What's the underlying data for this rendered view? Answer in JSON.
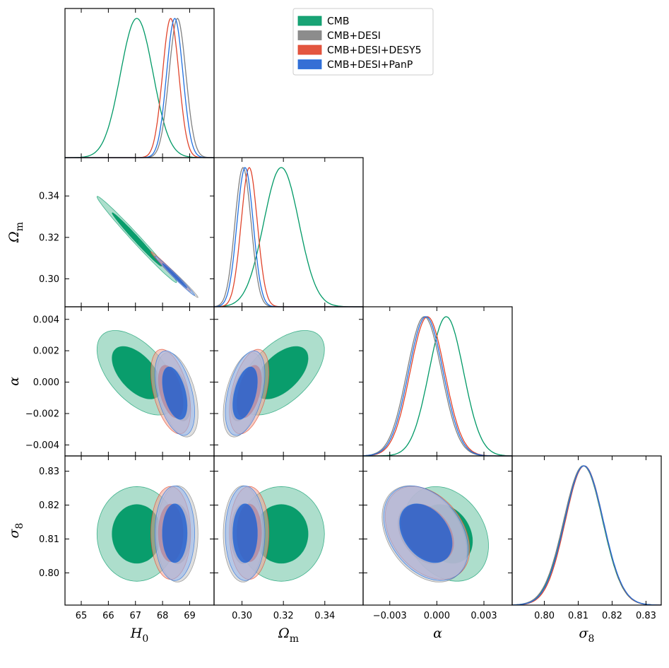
{
  "chart_data": {
    "type": "triangle-corner-plot",
    "parameters": [
      {
        "key": "H0",
        "label": "H",
        "sub": "0",
        "range": [
          64.4,
          69.9
        ],
        "ticks": [
          65,
          66,
          67,
          68,
          69
        ],
        "tick_labels": [
          "65",
          "66",
          "67",
          "68",
          "69"
        ]
      },
      {
        "key": "Om",
        "label": "Ω",
        "sub": "m",
        "range": [
          0.2865,
          0.3585
        ],
        "ticks": [
          0.3,
          0.32,
          0.34
        ],
        "tick_labels": [
          "0.30",
          "0.32",
          "0.34"
        ],
        "y_ticks": [
          0.3,
          0.32,
          0.34
        ],
        "y_tick_labels": [
          "0.30",
          "0.32",
          "0.34"
        ]
      },
      {
        "key": "alpha",
        "label": "α",
        "sub": "",
        "range": [
          -0.0047,
          0.0048
        ],
        "ticks": [
          -0.003,
          0.0,
          0.003
        ],
        "tick_labels": [
          "−0.003",
          "0.000",
          "0.003"
        ],
        "y_ticks": [
          -0.004,
          -0.002,
          0.0,
          0.002,
          0.004
        ],
        "y_tick_labels": [
          "−0.004",
          "−0.002",
          "0.000",
          "0.002",
          "0.004"
        ]
      },
      {
        "key": "s8",
        "label": "σ",
        "sub": "8",
        "range": [
          0.7905,
          0.8345
        ],
        "ticks": [
          0.8,
          0.81,
          0.82,
          0.83
        ],
        "tick_labels": [
          "0.80",
          "0.81",
          "0.82",
          "0.83"
        ],
        "y_ticks": [
          0.8,
          0.81,
          0.82,
          0.83
        ],
        "y_tick_labels": [
          "0.80",
          "0.81",
          "0.82",
          "0.83"
        ]
      }
    ],
    "series": [
      {
        "name": "CMB",
        "color": "#009966",
        "fill_inner": "#009966",
        "fill_outer": "#9fd8c3",
        "mean": {
          "H0": 67.05,
          "Om": 0.319,
          "alpha": 0.0006,
          "s8": 0.8115
        },
        "sigma": {
          "H0": 0.6,
          "Om": 0.0085,
          "alpha": 0.0011,
          "s8": 0.0057
        },
        "corr": {
          "H0|Om": -0.99,
          "H0|alpha": -0.55,
          "H0|s8": 0.0,
          "Om|alpha": 0.55,
          "Om|s8": 0.0,
          "alpha|s8": -0.25
        }
      },
      {
        "name": "CMB+DESI",
        "color": "#808080",
        "fill_inner": "#808080",
        "fill_outer": "#c8c8c8",
        "mean": {
          "H0": 68.55,
          "Om": 0.3005,
          "alpha": -0.0008,
          "s8": 0.8115
        },
        "sigma": {
          "H0": 0.31,
          "Om": 0.0039,
          "alpha": 0.0011,
          "s8": 0.0058
        },
        "corr": {
          "H0|Om": -0.99,
          "H0|alpha": -0.45,
          "H0|s8": 0.0,
          "Om|alpha": 0.45,
          "Om|s8": 0.0,
          "alpha|s8": -0.35
        }
      },
      {
        "name": "CMB+DESI+DESY5",
        "color": "#e0442b",
        "fill_inner": "#e0442b",
        "fill_outer": "#f0a898",
        "mean": {
          "H0": 68.3,
          "Om": 0.3035,
          "alpha": -0.0006,
          "s8": 0.8118
        },
        "sigma": {
          "H0": 0.3,
          "Om": 0.0039,
          "alpha": 0.0011,
          "s8": 0.0056
        },
        "corr": {
          "H0|Om": -0.99,
          "H0|alpha": -0.45,
          "H0|s8": 0.0,
          "Om|alpha": 0.45,
          "Om|s8": 0.0,
          "alpha|s8": -0.35
        }
      },
      {
        "name": "CMB+DESI+PanP",
        "color": "#1f6fe0",
        "fill_inner": "#1f5fd0",
        "fill_outer": "#9bb9ec",
        "mean": {
          "H0": 68.45,
          "Om": 0.3015,
          "alpha": -0.0007,
          "s8": 0.8117
        },
        "sigma": {
          "H0": 0.3,
          "Om": 0.0039,
          "alpha": 0.0011,
          "s8": 0.0057
        },
        "corr": {
          "H0|Om": -0.99,
          "H0|alpha": -0.45,
          "H0|s8": 0.0,
          "Om|alpha": 0.45,
          "Om|s8": 0.0,
          "alpha|s8": -0.35
        }
      }
    ],
    "legend": {
      "position": "top-right",
      "entries": [
        "CMB",
        "CMB+DESI",
        "CMB+DESI+DESY5",
        "CMB+DESI+PanP"
      ]
    }
  }
}
